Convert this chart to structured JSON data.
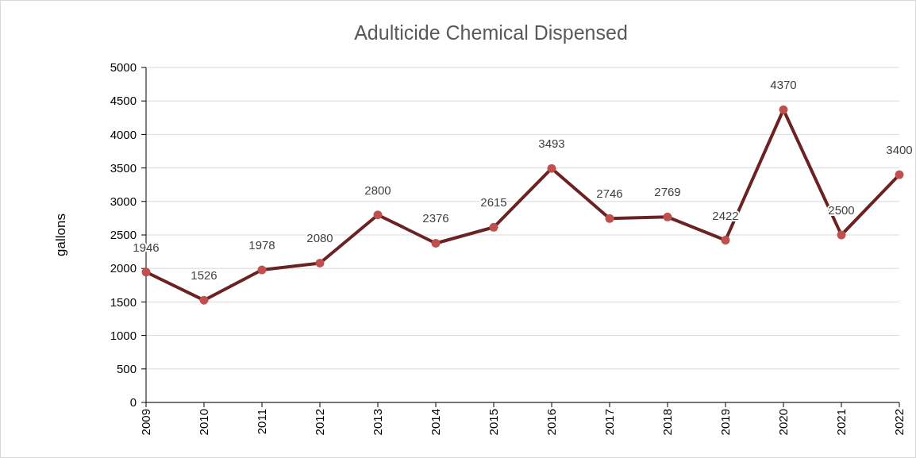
{
  "chart_data": {
    "type": "line",
    "title": "Adulticide Chemical Dispensed",
    "ylabel": "gallons",
    "categories": [
      "2009",
      "2010",
      "2011",
      "2012",
      "2013",
      "2014",
      "2015",
      "2016",
      "2017",
      "2018",
      "2019",
      "2020",
      "2021",
      "2022"
    ],
    "series": [
      {
        "color": "#6b2222",
        "colors": [
          "#c0504d",
          "#c0504d",
          "#c0504d",
          "#c0504d",
          "#c0504d",
          "#c0504d",
          "#c0504d",
          "#c0504d",
          "#c0504d",
          "#c0504d",
          "#c0504d",
          "#c0504d",
          "#c0504d",
          "#c0504d"
        ],
        "values": [
          1946,
          1526,
          1978,
          2080,
          2800,
          2376,
          2615,
          3493,
          2746,
          2769,
          2422,
          4370,
          2500,
          3400
        ]
      }
    ],
    "ylim": [
      0,
      5000
    ],
    "yticks": [
      0,
      500,
      1000,
      1500,
      2000,
      2500,
      3000,
      3500,
      4000,
      4500,
      5000
    ],
    "grid": "y",
    "marker": "circle",
    "line_style": "solid",
    "data_labels": true
  }
}
